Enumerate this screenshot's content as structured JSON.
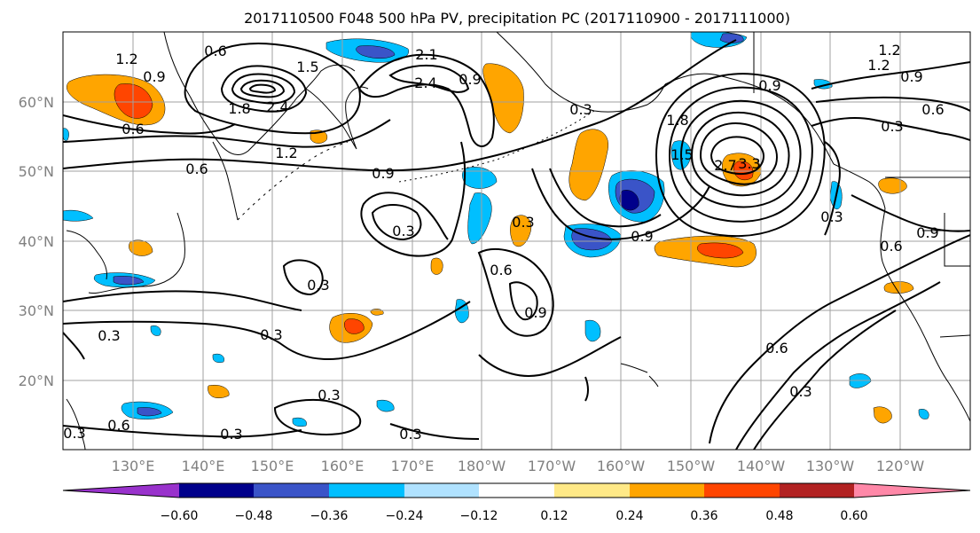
{
  "title": "2017110500 F048 500 hPa PV, precipitation PC (2017110900 - 2017111000)",
  "lat_labels": [
    "60°N",
    "50°N",
    "40°N",
    "30°N",
    "20°N"
  ],
  "lon_labels": [
    "130°E",
    "140°E",
    "150°E",
    "160°E",
    "170°E",
    "180°W",
    "170°W",
    "160°W",
    "150°W",
    "140°W",
    "130°W",
    "120°W"
  ],
  "colorbar": {
    "colors": [
      "#9932cc",
      "#00008b",
      "#3a54c8",
      "#00bfff",
      "#b0e2ff",
      "#ffffff",
      "#ffe987",
      "#ffa500",
      "#ff4500",
      "#b22222",
      "#ff88a8"
    ],
    "tick_labels": [
      "−0.60",
      "−0.48",
      "−0.36",
      "−0.24",
      "−0.12",
      "0.12",
      "0.24",
      "0.36",
      "0.48",
      "0.60"
    ]
  },
  "contour_labels": [
    "1.2",
    "0.9",
    "0.6",
    "0.6",
    "1.5",
    "2.1",
    "2.4",
    "2.4",
    "1.8",
    "0.9",
    "0.6",
    "1.2",
    "0.9",
    "0.3",
    "0.3",
    "0.6",
    "0.9",
    "0.3",
    "0.9",
    "0.3",
    "0.3",
    "0.3",
    "0.3",
    "0.3",
    "1.8",
    "1.5",
    "2.7",
    "3.3",
    "0.9",
    "0.6",
    "0.3",
    "1.2",
    "1.2",
    "0.9",
    "0.6",
    "0.6",
    "0.9",
    "0.3",
    "0.3",
    "0.3",
    "0.6",
    "0.3"
  ]
}
